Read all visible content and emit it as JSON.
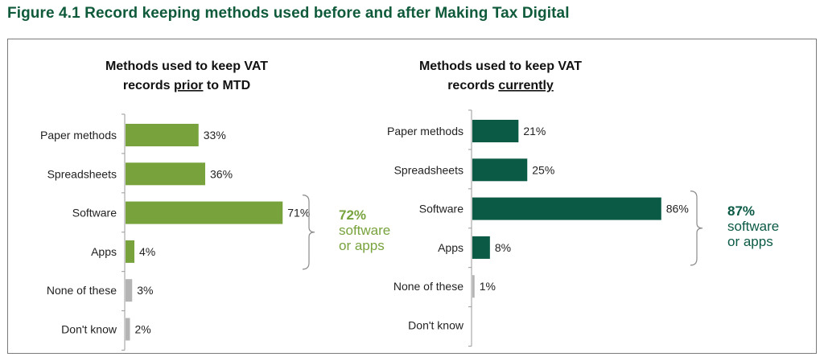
{
  "figure_title": "Figure 4.1 Record keeping methods used before and after Making Tax Digital",
  "colors": {
    "title": "#0f5a3a",
    "left_bar": "#77a23c",
    "right_bar": "#0b5a45",
    "grey_bar": "#b4b4b4",
    "left_note": "#77a23c",
    "right_note": "#0b5a45"
  },
  "chart_data": [
    {
      "type": "bar",
      "orientation": "horizontal",
      "title_lines": [
        [
          {
            "text": "Methods used to keep VAT",
            "underline": false
          }
        ],
        [
          {
            "text": "records ",
            "underline": false
          },
          {
            "text": "prior",
            "underline": true
          },
          {
            "text": " to MTD",
            "underline": false
          }
        ]
      ],
      "categories": [
        "Paper methods",
        "Spreadsheets",
        "Software",
        "Apps",
        "None of these",
        "Don't know"
      ],
      "values": [
        33,
        36,
        71,
        4,
        3,
        2
      ],
      "value_labels": [
        "33%",
        "36%",
        "71%",
        "4%",
        "3%",
        "2%"
      ],
      "bar_colors": [
        "left_bar",
        "left_bar",
        "left_bar",
        "left_bar",
        "grey_bar",
        "grey_bar"
      ],
      "unit": "%",
      "annotation": {
        "percent": "72%",
        "lines": [
          "software",
          "or apps"
        ],
        "brackets": [
          "Software",
          "Apps"
        ],
        "color": "left_note"
      }
    },
    {
      "type": "bar",
      "orientation": "horizontal",
      "title_lines": [
        [
          {
            "text": "Methods used to keep VAT",
            "underline": false
          }
        ],
        [
          {
            "text": "records ",
            "underline": false
          },
          {
            "text": "currently",
            "underline": true
          }
        ]
      ],
      "categories": [
        "Paper methods",
        "Spreadsheets",
        "Software",
        "Apps",
        "None of these",
        "Don't know"
      ],
      "values": [
        21,
        25,
        86,
        8,
        1,
        null
      ],
      "value_labels": [
        "21%",
        "25%",
        "86%",
        "8%",
        "1%",
        ""
      ],
      "bar_colors": [
        "right_bar",
        "right_bar",
        "right_bar",
        "right_bar",
        "grey_bar",
        "grey_bar"
      ],
      "unit": "%",
      "annotation": {
        "percent": "87%",
        "lines": [
          "software",
          "or apps"
        ],
        "brackets": [
          "Software",
          "Apps"
        ],
        "color": "right_note"
      }
    }
  ]
}
